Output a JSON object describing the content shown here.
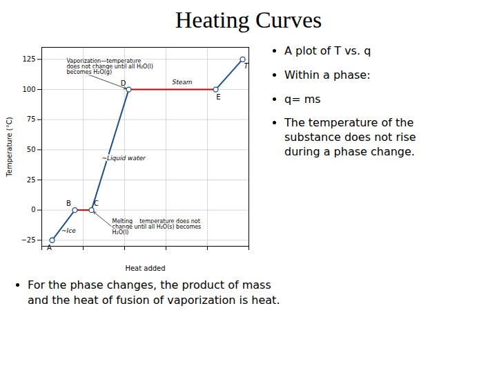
{
  "chart_data": {
    "type": "line",
    "title": "Heating Curves",
    "x_label": "Heat added",
    "y_label": "Temperature (°C)",
    "x": [
      0.05,
      0.16,
      0.24,
      0.42,
      0.84,
      0.97
    ],
    "y": [
      -25,
      0,
      0,
      100,
      100,
      125
    ],
    "point_labels": [
      "A",
      "B",
      "C",
      "D",
      "E",
      "T"
    ],
    "colors": [
      "#1c4f8a",
      "#cc0000",
      "#1c4f8a",
      "#cc0000",
      "#1c4f8a"
    ],
    "color": "#1c4f8a",
    "marker": "circle",
    "xlim": [
      0.0,
      1.0
    ],
    "ylim": [
      -30,
      135
    ],
    "xticks": [
      0,
      0.2,
      0.4,
      0.6,
      0.8,
      1
    ],
    "yticks": [
      -25,
      0,
      25,
      50,
      75,
      100,
      125
    ],
    "grid": true,
    "tick_labels": "y",
    "annotations": [
      {
        "text": "Vaporization—temperature\ndoes not change until all H₂O(l)\nbecomes H₂O(g)",
        "x": 0.42,
        "y": 100,
        "text_x": 0.12,
        "text_y": 119
      },
      {
        "text": "Melting    temperature does not\nchange until all H₂O(s) becomes\nH₂O(l)",
        "x": 0.24,
        "y": 0,
        "text_x": 0.34,
        "text_y": -14
      }
    ],
    "region_labels": [
      {
        "text": "~Ice",
        "x": 0.095,
        "y": -15
      },
      {
        "text": "~Liquid water",
        "x": 0.29,
        "y": 45
      },
      {
        "text": "Steam",
        "x": 0.63,
        "y": 108
      }
    ],
    "notes": [
      "A plot of T vs. q",
      "Within a phase:",
      "q= ms",
      "The temperature of the\nsubstance does not rise\nduring a phase change."
    ],
    "footnote": [
      "For the phase changes, the product of mass",
      "and the heat of fusion of vaporization is heat."
    ]
  }
}
